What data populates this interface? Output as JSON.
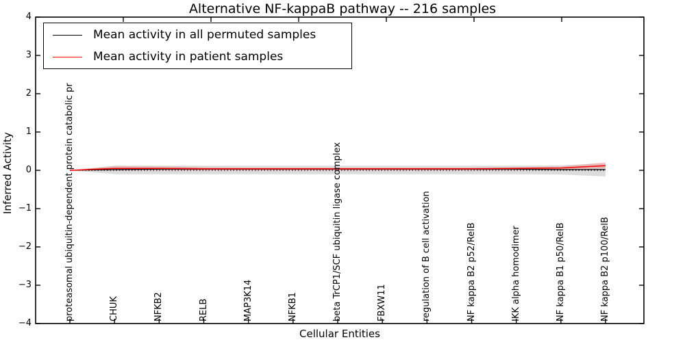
{
  "figure": {
    "title": "Alternative NF-kappaB pathway -- 216 samples",
    "xlabel": "Cellular Entities",
    "ylabel": "Inferred Activity"
  },
  "legend": {
    "entries": [
      {
        "label": "Mean activity in all permuted samples",
        "color": "#000000"
      },
      {
        "label": "Mean activity in patient samples",
        "color": "#ff0000"
      }
    ]
  },
  "chart_data": {
    "type": "line",
    "title": "Alternative NF-kappaB pathway -- 216 samples",
    "xlabel": "Cellular Entities",
    "ylabel": "Inferred Activity",
    "ylim": [
      -4,
      4
    ],
    "yticks": [
      4,
      3,
      2,
      1,
      0,
      -1,
      -2,
      -3,
      -4
    ],
    "grid": false,
    "legend_position": "upper left",
    "zero_line": {
      "style": "dotted",
      "y": 0,
      "color": "#000000"
    },
    "categories": [
      "proteasomal ubiquitin-dependent protein catabolic pr",
      "CHUK",
      "NFKB2",
      "RELB",
      "MAP3K14",
      "NFKB1",
      "beta TrCP1/SCF ubiquitin ligase complex",
      "FBXW11",
      "regulation of B cell activation",
      "NF kappa B2 p52/RelB",
      "IKK alpha homodimer",
      "NF kappa B1 p50/RelB",
      "NF kappa B2 p100/RelB"
    ],
    "series": [
      {
        "name": "Mean activity in all permuted samples",
        "color": "#000000",
        "line_width": 1.2,
        "values": [
          0.0,
          0.02,
          0.03,
          0.03,
          0.03,
          0.03,
          0.03,
          0.03,
          0.03,
          0.03,
          0.03,
          0.02,
          0.02
        ],
        "band_upper": [
          0.0,
          0.12,
          0.12,
          0.12,
          0.12,
          0.12,
          0.12,
          0.12,
          0.12,
          0.12,
          0.12,
          0.13,
          0.18
        ],
        "band_lower": [
          0.0,
          -0.1,
          -0.1,
          -0.1,
          -0.1,
          -0.1,
          -0.1,
          -0.1,
          -0.1,
          -0.1,
          -0.1,
          -0.11,
          -0.16
        ],
        "band_color": "rgba(130,130,130,0.28)"
      },
      {
        "name": "Mean activity in patient samples",
        "color": "#ff0000",
        "line_width": 1.5,
        "values": [
          0.0,
          0.05,
          0.05,
          0.04,
          0.04,
          0.04,
          0.04,
          0.04,
          0.04,
          0.04,
          0.05,
          0.06,
          0.12
        ],
        "band_upper": [
          0.0,
          0.11,
          0.1,
          0.08,
          0.07,
          0.07,
          0.07,
          0.07,
          0.07,
          0.07,
          0.08,
          0.1,
          0.21
        ],
        "band_lower": [
          0.0,
          0.0,
          0.0,
          0.0,
          0.0,
          0.0,
          0.0,
          0.0,
          0.0,
          0.0,
          0.01,
          0.02,
          0.05
        ],
        "band_color": "rgba(255,60,60,0.22)"
      }
    ]
  }
}
